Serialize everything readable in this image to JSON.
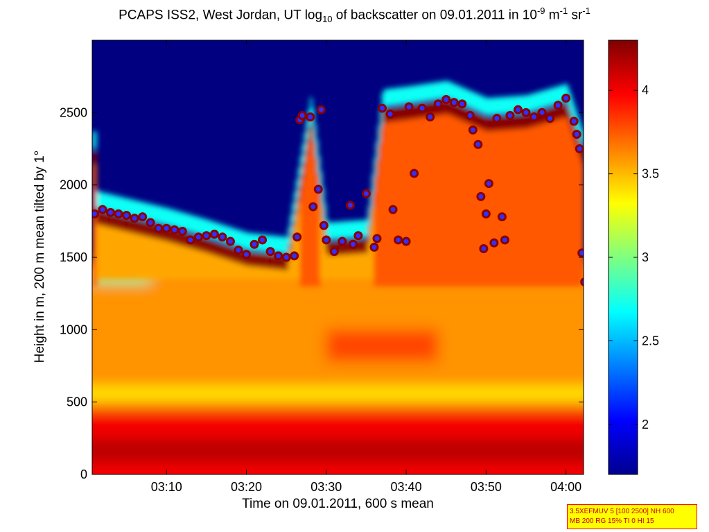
{
  "title": {
    "part1": "PCAPS ISS2, West Jordan, UT log",
    "sub": "10",
    "part2": " of backscatter on 09.01.2011 in 10",
    "sup1": "-9",
    "part3": " m",
    "sup2": "-1",
    "part4": " sr",
    "sup3": "-1"
  },
  "xlabel": "Time on 09.01.2011, 600 s mean",
  "ylabel": "Height in m, 200 m mean tilted by 1°",
  "info_box": {
    "line1": "3.5XEFMUV 5 [100 2500] NH 600",
    "line2": "MB 200 RG 15% TI 0 HI 15"
  },
  "colors": {
    "background_clear_air": "#00008f",
    "ceiling_marker_fill": "#3030ff",
    "ceiling_marker_edge": "#8b0000",
    "info_box_bg": "#ffff00",
    "info_box_border": "#ff0000"
  },
  "chart_data": {
    "type": "heatmap",
    "colormap": "jet",
    "x_label": "Time on 09.01.2011, 600 s mean",
    "y_label": "Height in m, 200 m mean tilted by 1°",
    "xlim": [
      "03:01",
      "04:02"
    ],
    "ylim": [
      0,
      3000
    ],
    "x_ticks": [
      "03:10",
      "03:20",
      "03:30",
      "03:40",
      "03:50",
      "04:00"
    ],
    "y_ticks": [
      0,
      500,
      1000,
      1500,
      2000,
      2500
    ],
    "colorbar": {
      "range": [
        1.7,
        4.3
      ],
      "ticks": [
        2,
        2.5,
        3,
        3.5,
        4
      ]
    },
    "surface_layer": {
      "height_range": [
        0,
        450
      ],
      "log10_backscatter": 4.0
    },
    "mixed_layer": {
      "height_range": [
        450,
        1350
      ],
      "log10_backscatter": 3.6
    },
    "cloud_layer_top_estimate": [
      {
        "time": "03:01",
        "height": 1820
      },
      {
        "time": "03:10",
        "height": 1700
      },
      {
        "time": "03:15",
        "height": 1620
      },
      {
        "time": "03:20",
        "height": 1530
      },
      {
        "time": "03:25",
        "height": 1500
      },
      {
        "time": "03:28",
        "height": 2480
      },
      {
        "time": "03:30",
        "height": 1600
      },
      {
        "time": "03:35",
        "height": 1620
      },
      {
        "time": "03:37",
        "height": 2520
      },
      {
        "time": "03:40",
        "height": 2540
      },
      {
        "time": "03:45",
        "height": 2580
      },
      {
        "time": "03:50",
        "height": 2460
      },
      {
        "time": "03:55",
        "height": 2480
      },
      {
        "time": "04:00",
        "height": 2560
      },
      {
        "time": "04:02",
        "height": 2230
      }
    ],
    "ceiling_detections": [
      {
        "time": "03:01",
        "height": 1800
      },
      {
        "time": "03:02",
        "height": 1830
      },
      {
        "time": "03:03",
        "height": 1810
      },
      {
        "time": "03:04",
        "height": 1800
      },
      {
        "time": "03:05",
        "height": 1790
      },
      {
        "time": "03:06",
        "height": 1770
      },
      {
        "time": "03:07",
        "height": 1780
      },
      {
        "time": "03:08",
        "height": 1740
      },
      {
        "time": "03:09",
        "height": 1700
      },
      {
        "time": "03:10",
        "height": 1700
      },
      {
        "time": "03:11",
        "height": 1690
      },
      {
        "time": "03:12",
        "height": 1680
      },
      {
        "time": "03:13",
        "height": 1620
      },
      {
        "time": "03:14",
        "height": 1640
      },
      {
        "time": "03:15",
        "height": 1650
      },
      {
        "time": "03:16",
        "height": 1660
      },
      {
        "time": "03:17",
        "height": 1640
      },
      {
        "time": "03:18",
        "height": 1610
      },
      {
        "time": "03:19",
        "height": 1550
      },
      {
        "time": "03:20",
        "height": 1520
      },
      {
        "time": "03:21",
        "height": 1590
      },
      {
        "time": "03:22",
        "height": 1620
      },
      {
        "time": "03:23",
        "height": 1540
      },
      {
        "time": "03:24",
        "height": 1510
      },
      {
        "time": "03:25",
        "height": 1500
      },
      {
        "time": "03:26",
        "height": 1510
      },
      {
        "time": "03:26",
        "height": 1640
      },
      {
        "time": "03:26",
        "height": 2450
      },
      {
        "time": "03:27",
        "height": 2480
      },
      {
        "time": "03:28",
        "height": 2470
      },
      {
        "time": "03:28",
        "height": 1850
      },
      {
        "time": "03:29",
        "height": 1970
      },
      {
        "time": "03:29",
        "height": 2520
      },
      {
        "time": "03:29",
        "height": 1720
      },
      {
        "time": "03:30",
        "height": 1620
      },
      {
        "time": "03:31",
        "height": 1540
      },
      {
        "time": "03:32",
        "height": 1610
      },
      {
        "time": "03:33",
        "height": 1860
      },
      {
        "time": "03:33",
        "height": 1590
      },
      {
        "time": "03:34",
        "height": 1650
      },
      {
        "time": "03:35",
        "height": 1940
      },
      {
        "time": "03:36",
        "height": 1570
      },
      {
        "time": "03:36",
        "height": 1630
      },
      {
        "time": "03:37",
        "height": 2530
      },
      {
        "time": "03:38",
        "height": 2490
      },
      {
        "time": "03:38",
        "height": 1830
      },
      {
        "time": "03:39",
        "height": 1620
      },
      {
        "time": "03:40",
        "height": 1610
      },
      {
        "time": "03:40",
        "height": 2540
      },
      {
        "time": "03:41",
        "height": 2080
      },
      {
        "time": "03:42",
        "height": 2530
      },
      {
        "time": "03:43",
        "height": 2470
      },
      {
        "time": "03:44",
        "height": 2560
      },
      {
        "time": "03:45",
        "height": 2590
      },
      {
        "time": "03:46",
        "height": 2570
      },
      {
        "time": "03:47",
        "height": 2560
      },
      {
        "time": "03:48",
        "height": 2480
      },
      {
        "time": "03:48",
        "height": 2380
      },
      {
        "time": "03:49",
        "height": 2280
      },
      {
        "time": "03:49",
        "height": 1920
      },
      {
        "time": "03:49",
        "height": 1560
      },
      {
        "time": "03:50",
        "height": 1800
      },
      {
        "time": "03:50",
        "height": 2010
      },
      {
        "time": "03:51",
        "height": 1600
      },
      {
        "time": "03:51",
        "height": 2460
      },
      {
        "time": "03:52",
        "height": 1780
      },
      {
        "time": "03:52",
        "height": 1620
      },
      {
        "time": "03:53",
        "height": 2480
      },
      {
        "time": "03:54",
        "height": 2520
      },
      {
        "time": "03:55",
        "height": 2500
      },
      {
        "time": "03:56",
        "height": 2470
      },
      {
        "time": "03:57",
        "height": 2500
      },
      {
        "time": "03:58",
        "height": 2460
      },
      {
        "time": "03:59",
        "height": 2550
      },
      {
        "time": "04:00",
        "height": 2600
      },
      {
        "time": "04:01",
        "height": 2440
      },
      {
        "time": "04:01",
        "height": 2350
      },
      {
        "time": "04:01",
        "height": 2250
      },
      {
        "time": "04:02",
        "height": 1530
      },
      {
        "time": "04:02",
        "height": 1330
      },
      {
        "time": "04:02",
        "height": 2230
      }
    ]
  }
}
